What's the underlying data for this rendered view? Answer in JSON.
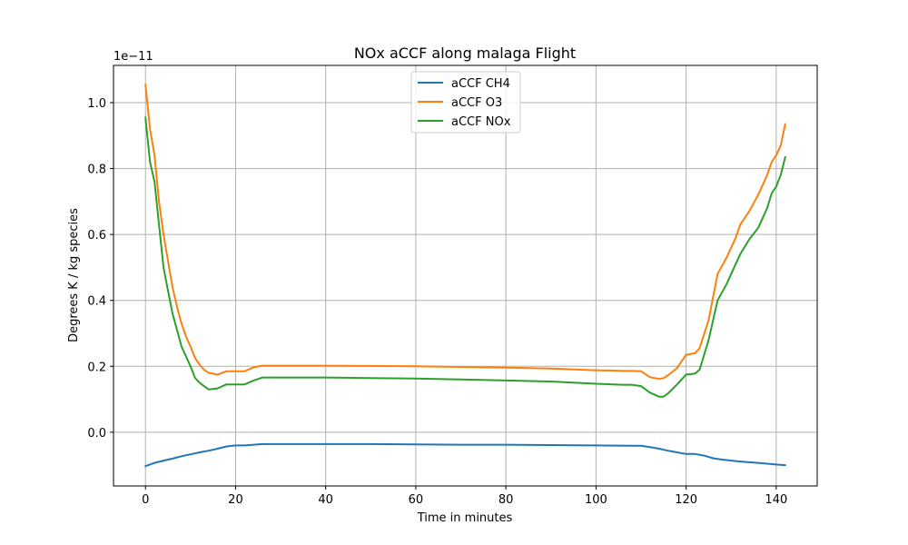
{
  "chart_data": {
    "type": "line",
    "title": "NOx aCCF along malaga Flight",
    "xlabel": "Time in minutes",
    "ylabel": "Degrees K / kg species",
    "y_offset_label": "1e−11",
    "xlim": [
      -7.1,
      149.1
    ],
    "ylim": [
      -0.163,
      1.113
    ],
    "x_ticks": [
      0,
      20,
      40,
      60,
      80,
      100,
      120,
      140
    ],
    "x_tick_labels": [
      "0",
      "20",
      "40",
      "60",
      "80",
      "100",
      "120",
      "140"
    ],
    "y_ticks": [
      0.0,
      0.2,
      0.4,
      0.6,
      0.8,
      1.0
    ],
    "y_tick_labels": [
      "0.0",
      "0.2",
      "0.4",
      "0.6",
      "0.8",
      "1.0"
    ],
    "grid": true,
    "legend_position": "top-center",
    "series": [
      {
        "name": "aCCF CH4",
        "color": "#1f77b4",
        "points": [
          [
            0,
            -0.103
          ],
          [
            2,
            -0.093
          ],
          [
            4,
            -0.086
          ],
          [
            6,
            -0.08
          ],
          [
            8,
            -0.073
          ],
          [
            10,
            -0.067
          ],
          [
            12,
            -0.061
          ],
          [
            14,
            -0.056
          ],
          [
            16,
            -0.05
          ],
          [
            18,
            -0.043
          ],
          [
            20,
            -0.04
          ],
          [
            22,
            -0.04
          ],
          [
            24,
            -0.038
          ],
          [
            26,
            -0.036
          ],
          [
            30,
            -0.036
          ],
          [
            40,
            -0.036
          ],
          [
            50,
            -0.036
          ],
          [
            60,
            -0.037
          ],
          [
            70,
            -0.038
          ],
          [
            80,
            -0.038
          ],
          [
            90,
            -0.039
          ],
          [
            100,
            -0.04
          ],
          [
            108,
            -0.041
          ],
          [
            110,
            -0.041
          ],
          [
            112,
            -0.045
          ],
          [
            114,
            -0.05
          ],
          [
            116,
            -0.056
          ],
          [
            118,
            -0.061
          ],
          [
            120,
            -0.066
          ],
          [
            122,
            -0.066
          ],
          [
            124,
            -0.071
          ],
          [
            126,
            -0.079
          ],
          [
            128,
            -0.083
          ],
          [
            132,
            -0.089
          ],
          [
            136,
            -0.093
          ],
          [
            140,
            -0.098
          ],
          [
            142,
            -0.1
          ]
        ]
      },
      {
        "name": "aCCF O3",
        "color": "#ff7f0e",
        "points": [
          [
            0,
            1.055
          ],
          [
            1,
            0.92
          ],
          [
            2,
            0.84
          ],
          [
            3,
            0.7
          ],
          [
            4,
            0.6
          ],
          [
            5,
            0.52
          ],
          [
            6,
            0.44
          ],
          [
            7,
            0.38
          ],
          [
            8,
            0.33
          ],
          [
            9,
            0.29
          ],
          [
            10,
            0.26
          ],
          [
            11,
            0.225
          ],
          [
            12,
            0.205
          ],
          [
            13,
            0.19
          ],
          [
            14,
            0.18
          ],
          [
            16,
            0.175
          ],
          [
            18,
            0.185
          ],
          [
            20,
            0.185
          ],
          [
            22,
            0.185
          ],
          [
            24,
            0.197
          ],
          [
            26,
            0.202
          ],
          [
            30,
            0.202
          ],
          [
            40,
            0.202
          ],
          [
            50,
            0.201
          ],
          [
            60,
            0.2
          ],
          [
            70,
            0.198
          ],
          [
            80,
            0.196
          ],
          [
            90,
            0.193
          ],
          [
            100,
            0.188
          ],
          [
            104,
            0.187
          ],
          [
            106,
            0.186
          ],
          [
            108,
            0.186
          ],
          [
            110,
            0.185
          ],
          [
            112,
            0.167
          ],
          [
            114,
            0.162
          ],
          [
            115,
            0.164
          ],
          [
            116,
            0.173
          ],
          [
            118,
            0.195
          ],
          [
            120,
            0.235
          ],
          [
            122,
            0.24
          ],
          [
            123,
            0.255
          ],
          [
            125,
            0.34
          ],
          [
            127,
            0.48
          ],
          [
            129,
            0.53
          ],
          [
            131,
            0.59
          ],
          [
            132,
            0.63
          ],
          [
            134,
            0.67
          ],
          [
            136,
            0.72
          ],
          [
            138,
            0.78
          ],
          [
            139,
            0.82
          ],
          [
            140,
            0.84
          ],
          [
            141,
            0.87
          ],
          [
            142,
            0.935
          ]
        ]
      },
      {
        "name": "aCCF NOx",
        "color": "#2ca02c",
        "points": [
          [
            0,
            0.955
          ],
          [
            1,
            0.82
          ],
          [
            2,
            0.76
          ],
          [
            3,
            0.63
          ],
          [
            4,
            0.5
          ],
          [
            5,
            0.43
          ],
          [
            6,
            0.36
          ],
          [
            7,
            0.31
          ],
          [
            8,
            0.26
          ],
          [
            9,
            0.23
          ],
          [
            10,
            0.2
          ],
          [
            11,
            0.165
          ],
          [
            12,
            0.15
          ],
          [
            13,
            0.14
          ],
          [
            14,
            0.13
          ],
          [
            16,
            0.133
          ],
          [
            18,
            0.145
          ],
          [
            20,
            0.145
          ],
          [
            22,
            0.145
          ],
          [
            24,
            0.157
          ],
          [
            26,
            0.166
          ],
          [
            30,
            0.166
          ],
          [
            40,
            0.166
          ],
          [
            50,
            0.164
          ],
          [
            60,
            0.163
          ],
          [
            70,
            0.16
          ],
          [
            80,
            0.157
          ],
          [
            90,
            0.154
          ],
          [
            100,
            0.147
          ],
          [
            104,
            0.145
          ],
          [
            106,
            0.144
          ],
          [
            108,
            0.144
          ],
          [
            110,
            0.14
          ],
          [
            112,
            0.12
          ],
          [
            114,
            0.108
          ],
          [
            115,
            0.108
          ],
          [
            116,
            0.118
          ],
          [
            118,
            0.145
          ],
          [
            120,
            0.175
          ],
          [
            122,
            0.178
          ],
          [
            123,
            0.19
          ],
          [
            125,
            0.28
          ],
          [
            127,
            0.4
          ],
          [
            129,
            0.45
          ],
          [
            131,
            0.51
          ],
          [
            132,
            0.54
          ],
          [
            134,
            0.585
          ],
          [
            136,
            0.62
          ],
          [
            138,
            0.68
          ],
          [
            139,
            0.725
          ],
          [
            140,
            0.745
          ],
          [
            141,
            0.78
          ],
          [
            142,
            0.835
          ]
        ]
      }
    ]
  }
}
